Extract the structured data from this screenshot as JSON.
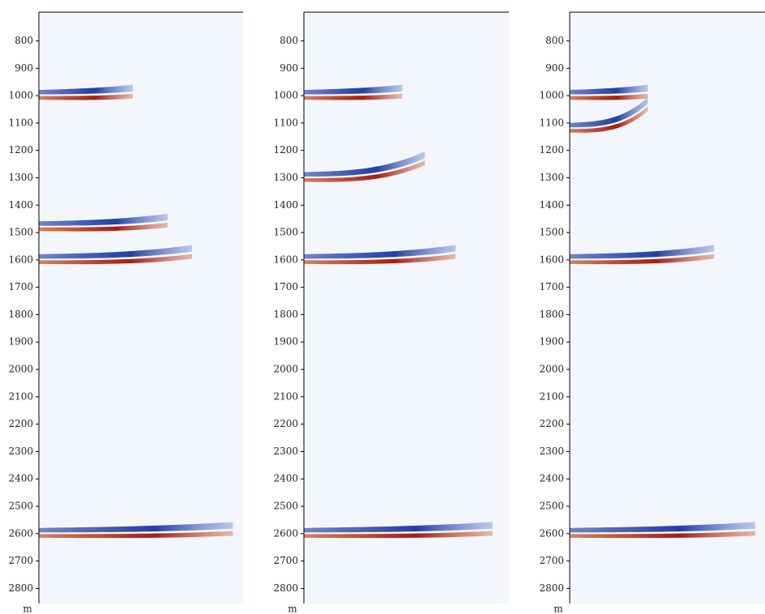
{
  "chart_data": [
    {
      "type": "seismic",
      "y_label": "m",
      "values": [
        1000,
        1480,
        1600,
        2600
      ],
      "ylim": [
        695,
        2855
      ],
      "yticks": [
        800,
        900,
        1000,
        1100,
        1200,
        1300,
        1400,
        1500,
        1600,
        1700,
        1800,
        1900,
        2000,
        2100,
        2200,
        2300,
        2400,
        2500,
        2600,
        2700,
        2800
      ]
    },
    {
      "type": "seismic",
      "y_label": "m",
      "values": [
        1000,
        1300,
        1600,
        2600
      ],
      "ylim": [
        695,
        2855
      ],
      "yticks": [
        800,
        900,
        1000,
        1100,
        1200,
        1300,
        1400,
        1500,
        1600,
        1700,
        1800,
        1900,
        2000,
        2100,
        2200,
        2300,
        2400,
        2500,
        2600,
        2700,
        2800
      ]
    },
    {
      "type": "seismic",
      "y_label": "m",
      "values": [
        1000,
        1120,
        1600,
        2600
      ],
      "ylim": [
        695,
        2855
      ],
      "yticks": [
        800,
        900,
        1000,
        1100,
        1200,
        1300,
        1400,
        1500,
        1600,
        1700,
        1800,
        1900,
        2000,
        2100,
        2200,
        2300,
        2400,
        2500,
        2600,
        2700,
        2800
      ]
    }
  ]
}
